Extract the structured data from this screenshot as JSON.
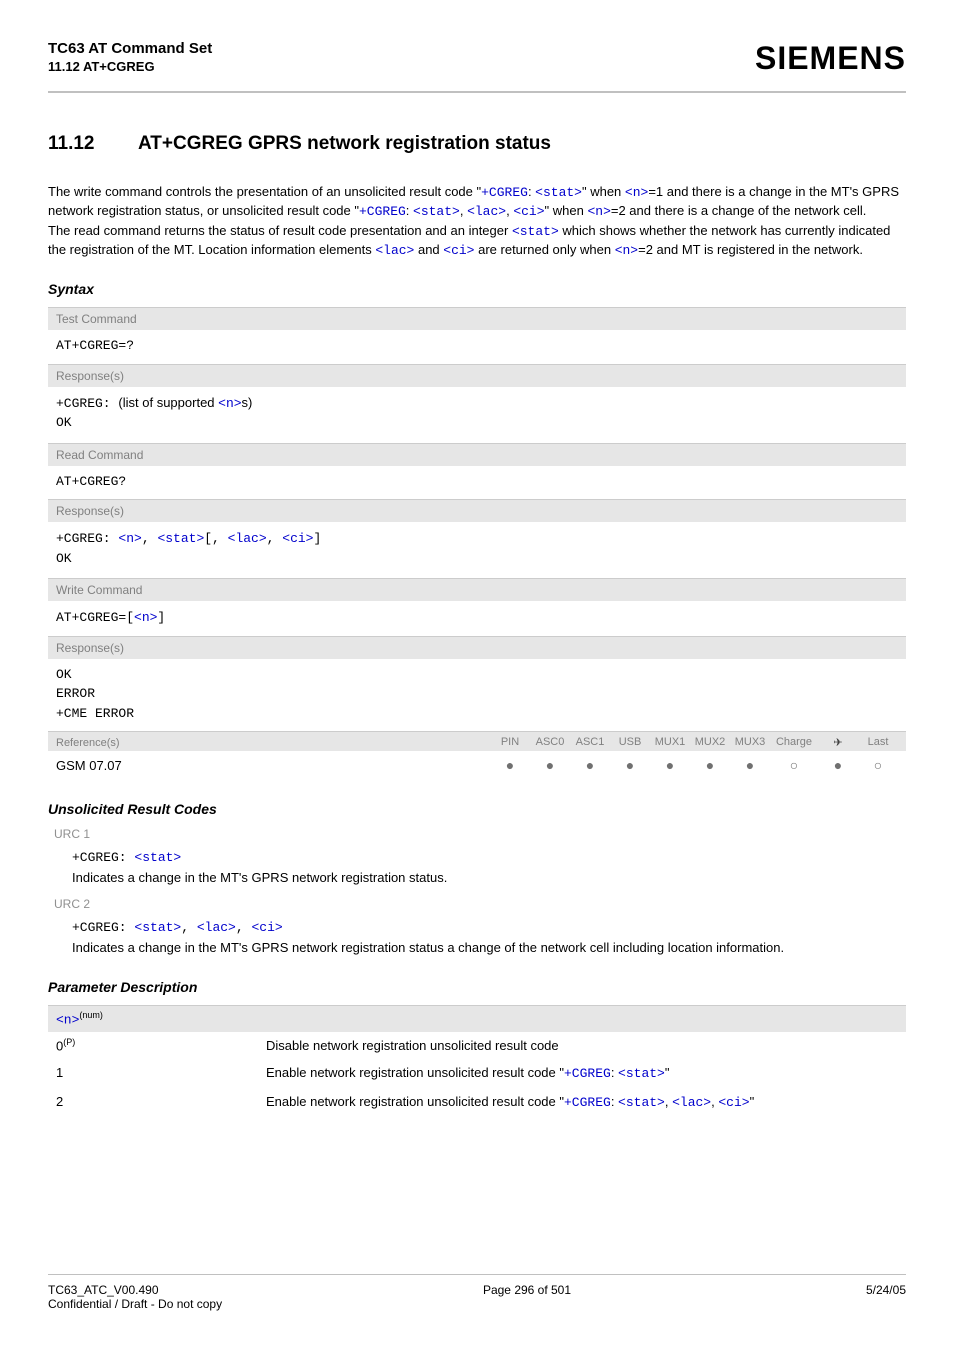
{
  "header": {
    "title": "TC63 AT Command Set",
    "sub": "11.12 AT+CGREG",
    "brand": "SIEMENS"
  },
  "section": {
    "num": "11.12",
    "title": "AT+CGREG   GPRS network registration status"
  },
  "intro": {
    "p1a": "The write command controls the presentation of an unsolicited result code \"",
    "p1b": "+CGREG",
    "p1c": ": ",
    "p1d": "<stat>",
    "p1e": "\" when ",
    "p1f": "<n>",
    "p1g": "=1 and there is a change in the MT's GPRS network registration status, or unsolicited result code \"",
    "p1h": "+CGREG",
    "p1i": ": ",
    "p1j": "<stat>",
    "p1k": ", ",
    "p1l": "<lac>",
    "p1m": ", ",
    "p1n": "<ci>",
    "p1o": "\" when ",
    "p1p": "<n>",
    "p1q": "=2 and there is a change of the network cell.",
    "p2a": "The read command returns the status of result code presentation and an integer ",
    "p2b": "<stat>",
    "p2c": " which shows whether the network has currently indicated the registration of the MT. Location information elements ",
    "p2d": "<lac>",
    "p2e": " and ",
    "p2f": "<ci>",
    "p2g": " are returned only when ",
    "p2h": "<n>",
    "p2i": "=2 and MT is registered in the network."
  },
  "syntax_label": "Syntax",
  "test": {
    "header": "Test Command",
    "cmd": "AT+CGREG=?",
    "resp_label": "Response(s)",
    "r1a": "+CGREG: ",
    "r1b": "(list of supported ",
    "r1c": "<n>",
    "r1d": "s)",
    "r2": "OK"
  },
  "read": {
    "header": "Read Command",
    "cmd": "AT+CGREG?",
    "resp_label": "Response(s)",
    "r1a": "+CGREG: ",
    "r1b": "<n>",
    "r1c": ", ",
    "r1d": "<stat>",
    "r1e": "[, ",
    "r1f": "<lac>",
    "r1g": ", ",
    "r1h": "<ci>",
    "r1i": "]",
    "r2": "OK"
  },
  "write": {
    "header": "Write Command",
    "c1": "AT+CGREG=[",
    "c2": "<n>",
    "c3": "]",
    "resp_label": "Response(s)",
    "r1": "OK",
    "r2": "ERROR",
    "r3": "+CME ERROR"
  },
  "ref": {
    "label": "Reference(s)",
    "cols": [
      "PIN",
      "ASC0",
      "ASC1",
      "USB",
      "MUX1",
      "MUX2",
      "MUX3",
      "Charge",
      "✈",
      "Last"
    ],
    "data_label": "GSM 07.07",
    "dots": [
      "filled",
      "filled",
      "filled",
      "filled",
      "filled",
      "filled",
      "filled",
      "open",
      "filled",
      "open"
    ]
  },
  "urc": {
    "heading": "Unsolicited Result Codes",
    "u1_label": "URC 1",
    "u1a": "+CGREG: ",
    "u1b": "<stat>",
    "u1_desc": "Indicates a change in the MT's GPRS network registration status.",
    "u2_label": "URC 2",
    "u2a": "+CGREG: ",
    "u2b": "<stat>",
    "u2c": ", ",
    "u2d": "<lac>",
    "u2e": ", ",
    "u2f": "<ci>",
    "u2_desc": "Indicates a change in the MT's GPRS network registration status a change of the network cell including location information."
  },
  "param": {
    "heading": "Parameter Description",
    "name": "<n>",
    "sup": "(num)",
    "r0k": "0",
    "r0sup": "(P)",
    "r0v": "Disable network registration unsolicited result code",
    "r1k": "1",
    "r1a": "Enable network registration unsolicited result code \"",
    "r1b": "+CGREG",
    "r1c": ": ",
    "r1d": "<stat>",
    "r1e": "\"",
    "r2k": "2",
    "r2a": "Enable network registration unsolicited result code \"",
    "r2b": "+CGREG",
    "r2c": ": ",
    "r2d": "<stat>",
    "r2e": ", ",
    "r2f": "<lac>",
    "r2g": ", ",
    "r2h": "<ci>",
    "r2i": "\""
  },
  "footer": {
    "left1": "TC63_ATC_V00.490",
    "left2": "Confidential / Draft - Do not copy",
    "center": "Page 296 of 501",
    "right": "5/24/05"
  }
}
